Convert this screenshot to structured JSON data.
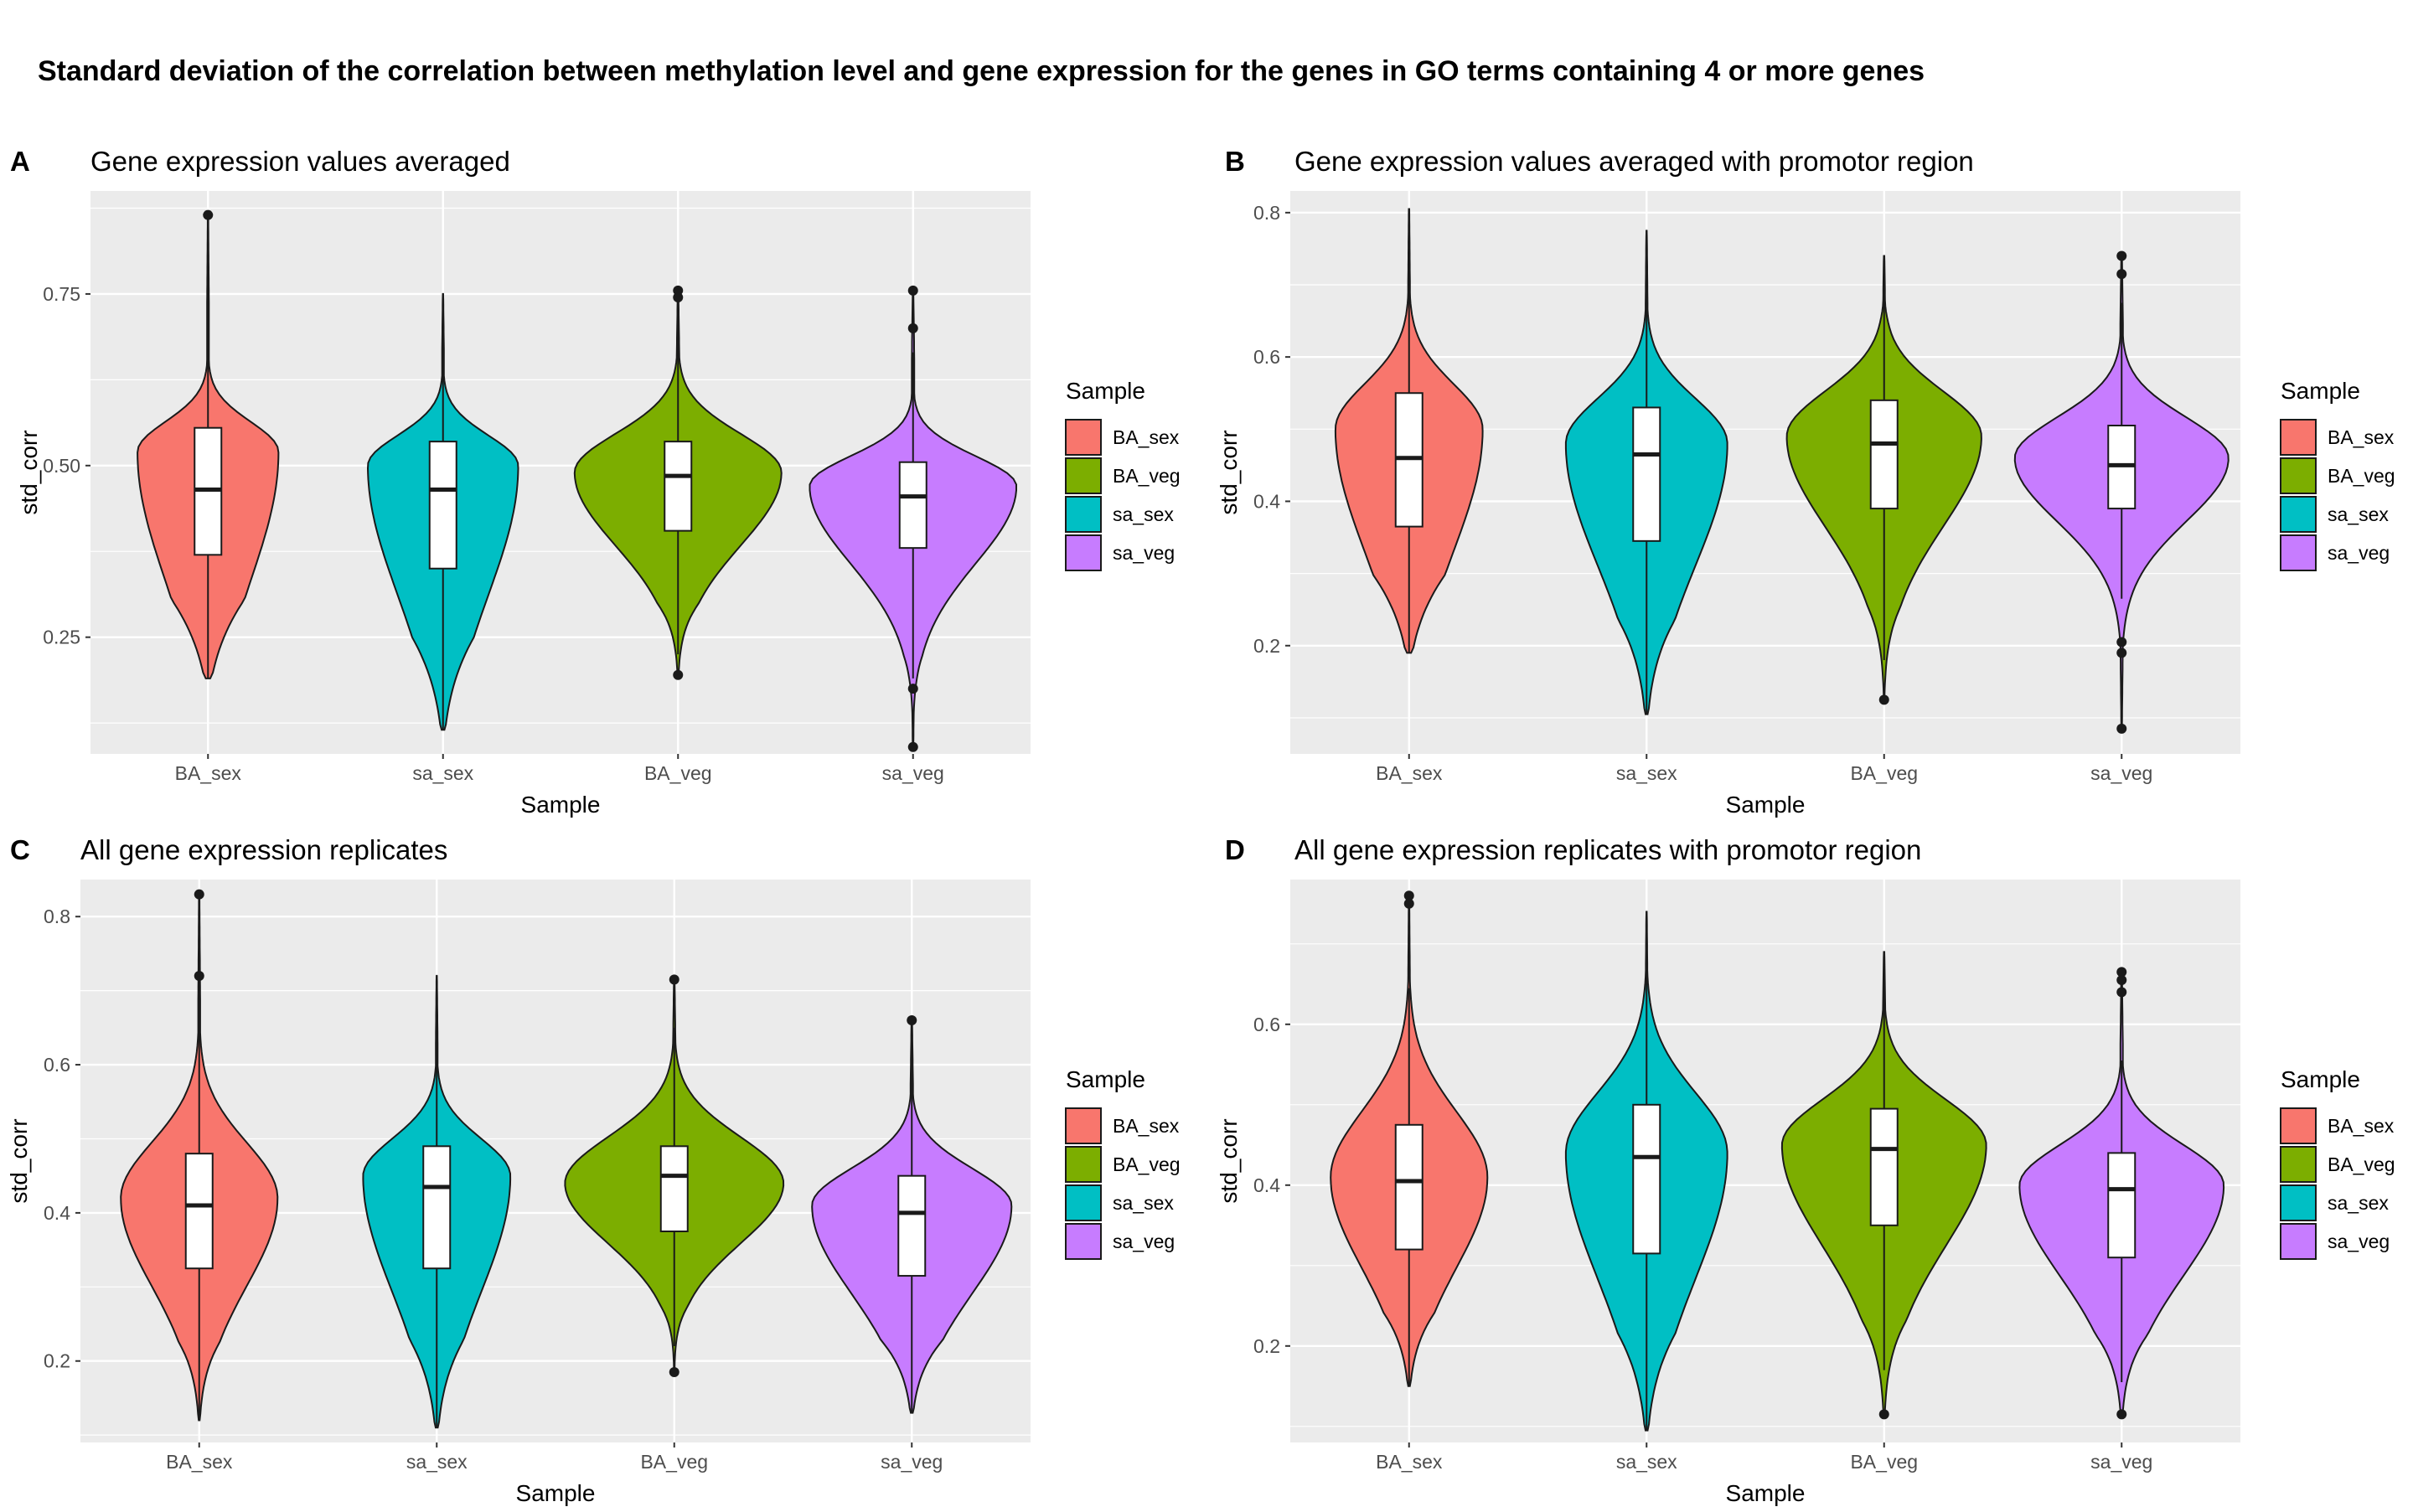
{
  "title": "Standard deviation of the correlation between methylation level and gene expression for the genes in GO terms containing 4 or more genes",
  "colors": {
    "BA_sex": "#F8766D",
    "BA_veg": "#7CAE00",
    "sa_sex": "#00BFC4",
    "sa_veg": "#C77CFF",
    "panel_bg": "#EBEBEB",
    "grid": "#FFFFFF"
  },
  "legend": {
    "title": "Sample",
    "items": [
      "BA_sex",
      "BA_veg",
      "sa_sex",
      "sa_veg"
    ]
  },
  "chart_data": [
    {
      "type": "violin",
      "letter": "A",
      "title": "Gene expression values averaged",
      "xlabel": "Sample",
      "ylabel": "std_corr",
      "categories": [
        "BA_sex",
        "sa_sex",
        "BA_veg",
        "sa_veg"
      ],
      "ylim": [
        0.08,
        0.9
      ],
      "yticks": [
        0.25,
        0.5,
        0.75
      ],
      "ytick_labels": [
        "0.25",
        "0.50",
        "0.75"
      ],
      "series": [
        {
          "name": "BA_sex",
          "min": 0.19,
          "q1": 0.37,
          "median": 0.465,
          "q3": 0.555,
          "max": 0.8,
          "ymax": 0.865,
          "outliers": [
            0.865
          ],
          "width": 0.3,
          "bulge": 0.52
        },
        {
          "name": "sa_sex",
          "min": 0.115,
          "q1": 0.35,
          "median": 0.465,
          "q3": 0.535,
          "max": 0.75,
          "ymax": 0.75,
          "outliers": [],
          "width": 0.32,
          "bulge": 0.5
        },
        {
          "name": "BA_veg",
          "min": 0.225,
          "q1": 0.405,
          "median": 0.485,
          "q3": 0.535,
          "max": 0.735,
          "ymax": 0.755,
          "outliers": [
            0.195,
            0.745,
            0.755
          ],
          "width": 0.44,
          "bulge": 0.49
        },
        {
          "name": "sa_veg",
          "min": 0.19,
          "q1": 0.38,
          "median": 0.455,
          "q3": 0.505,
          "max": 0.665,
          "ymax": 0.755,
          "outliers": [
            0.09,
            0.175,
            0.7,
            0.755
          ],
          "width": 0.44,
          "bulge": 0.47
        }
      ]
    },
    {
      "type": "violin",
      "letter": "B",
      "title": "Gene expression values averaged with promotor region",
      "xlabel": "Sample",
      "ylabel": "std_corr",
      "categories": [
        "BA_sex",
        "sa_sex",
        "BA_veg",
        "sa_veg"
      ],
      "ylim": [
        0.05,
        0.83
      ],
      "yticks": [
        0.2,
        0.4,
        0.6,
        0.8
      ],
      "ytick_labels": [
        "0.2",
        "0.4",
        "0.6",
        "0.8"
      ],
      "series": [
        {
          "name": "BA_sex",
          "min": 0.19,
          "q1": 0.365,
          "median": 0.46,
          "q3": 0.55,
          "max": 0.805,
          "ymax": 0.805,
          "outliers": [],
          "width": 0.31,
          "bulge": 0.5
        },
        {
          "name": "sa_sex",
          "min": 0.105,
          "q1": 0.345,
          "median": 0.465,
          "q3": 0.53,
          "max": 0.775,
          "ymax": 0.775,
          "outliers": [],
          "width": 0.34,
          "bulge": 0.48
        },
        {
          "name": "BA_veg",
          "min": 0.18,
          "q1": 0.39,
          "median": 0.48,
          "q3": 0.54,
          "max": 0.74,
          "ymax": 0.74,
          "outliers": [
            0.125
          ],
          "width": 0.41,
          "bulge": 0.49
        },
        {
          "name": "sa_veg",
          "min": 0.265,
          "q1": 0.39,
          "median": 0.45,
          "q3": 0.505,
          "max": 0.675,
          "ymax": 0.745,
          "outliers": [
            0.085,
            0.19,
            0.205,
            0.715,
            0.74
          ],
          "width": 0.45,
          "bulge": 0.46
        }
      ]
    },
    {
      "type": "violin",
      "letter": "C",
      "title": "All gene expression replicates",
      "xlabel": "Sample",
      "ylabel": "std_corr",
      "categories": [
        "BA_sex",
        "sa_sex",
        "BA_veg",
        "sa_veg"
      ],
      "ylim": [
        0.09,
        0.85
      ],
      "yticks": [
        0.2,
        0.4,
        0.6,
        0.8
      ],
      "ytick_labels": [
        "0.2",
        "0.4",
        "0.6",
        "0.8"
      ],
      "series": [
        {
          "name": "BA_sex",
          "min": 0.12,
          "q1": 0.325,
          "median": 0.41,
          "q3": 0.48,
          "max": 0.72,
          "ymax": 0.83,
          "outliers": [
            0.72,
            0.83
          ],
          "width": 0.33,
          "bulge": 0.42
        },
        {
          "name": "sa_sex",
          "min": 0.11,
          "q1": 0.325,
          "median": 0.435,
          "q3": 0.49,
          "max": 0.72,
          "ymax": 0.72,
          "outliers": [],
          "width": 0.31,
          "bulge": 0.45
        },
        {
          "name": "BA_veg",
          "min": 0.22,
          "q1": 0.375,
          "median": 0.45,
          "q3": 0.49,
          "max": 0.65,
          "ymax": 0.715,
          "outliers": [
            0.185,
            0.715
          ],
          "width": 0.46,
          "bulge": 0.44
        },
        {
          "name": "sa_veg",
          "min": 0.13,
          "q1": 0.315,
          "median": 0.4,
          "q3": 0.45,
          "max": 0.64,
          "ymax": 0.66,
          "outliers": [
            0.66
          ],
          "width": 0.42,
          "bulge": 0.41
        }
      ]
    },
    {
      "type": "violin",
      "letter": "D",
      "title": "All gene expression replicates with promotor region",
      "xlabel": "Sample",
      "ylabel": "std_corr",
      "categories": [
        "BA_sex",
        "sa_sex",
        "BA_veg",
        "sa_veg"
      ],
      "ylim": [
        0.08,
        0.78
      ],
      "yticks": [
        0.2,
        0.4,
        0.6
      ],
      "ytick_labels": [
        "0.2",
        "0.4",
        "0.6"
      ],
      "series": [
        {
          "name": "BA_sex",
          "min": 0.15,
          "q1": 0.32,
          "median": 0.405,
          "q3": 0.475,
          "max": 0.645,
          "ymax": 0.76,
          "outliers": [
            0.75,
            0.76
          ],
          "width": 0.33,
          "bulge": 0.41
        },
        {
          "name": "sa_sex",
          "min": 0.095,
          "q1": 0.315,
          "median": 0.435,
          "q3": 0.5,
          "max": 0.74,
          "ymax": 0.74,
          "outliers": [],
          "width": 0.34,
          "bulge": 0.44
        },
        {
          "name": "BA_veg",
          "min": 0.17,
          "q1": 0.35,
          "median": 0.445,
          "q3": 0.495,
          "max": 0.69,
          "ymax": 0.69,
          "outliers": [
            0.115
          ],
          "width": 0.43,
          "bulge": 0.45
        },
        {
          "name": "sa_veg",
          "min": 0.155,
          "q1": 0.31,
          "median": 0.395,
          "q3": 0.44,
          "max": 0.555,
          "ymax": 0.665,
          "outliers": [
            0.115,
            0.64,
            0.655,
            0.665
          ],
          "width": 0.43,
          "bulge": 0.4
        }
      ]
    }
  ]
}
